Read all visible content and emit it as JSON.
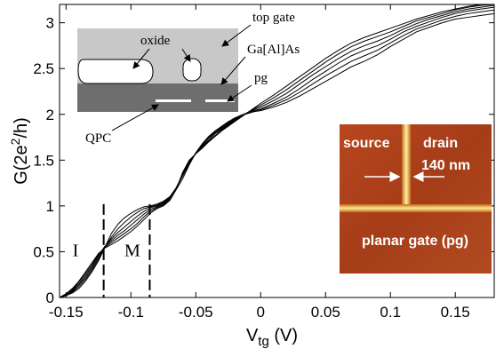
{
  "chart_data": {
    "type": "line",
    "xlabel_main": "V",
    "xlabel_sub": "tg",
    "xlabel_unit": " (V)",
    "ylabel_main": "G(2e",
    "ylabel_sup": "2",
    "ylabel_tail": "/h)",
    "xlim": [
      -0.155,
      0.18
    ],
    "ylim": [
      0,
      3.2
    ],
    "xticks": [
      -0.15,
      -0.1,
      -0.05,
      0,
      0.05,
      0.1,
      0.15
    ],
    "xtick_labels": [
      "-0.15",
      "-0.1",
      "-0.05",
      "0",
      "0.05",
      "0.1",
      "0.15"
    ],
    "yticks": [
      0,
      0.5,
      1,
      1.5,
      2,
      2.5,
      3
    ],
    "ytick_labels": [
      "0",
      "0.5",
      "1",
      "1.5",
      "2",
      "2.5",
      "3"
    ],
    "region_markers": [
      {
        "label": "I",
        "x": -0.121,
        "label_x": -0.145,
        "label_y": 0.45
      },
      {
        "label": "M",
        "x": -0.0855,
        "label_x": -0.105,
        "label_y": 0.45
      }
    ],
    "series": [
      {
        "x": [
          -0.155,
          -0.15,
          -0.145,
          -0.14,
          -0.135,
          -0.13,
          -0.125,
          -0.12,
          -0.115,
          -0.11,
          -0.105,
          -0.1,
          -0.095,
          -0.09,
          -0.085,
          -0.08,
          -0.075,
          -0.07,
          -0.065,
          -0.06,
          -0.055,
          -0.05,
          -0.045,
          -0.04,
          -0.035,
          -0.03,
          -0.025,
          -0.02,
          -0.015,
          -0.01,
          -0.005,
          0,
          0.01,
          0.02,
          0.03,
          0.04,
          0.05,
          0.06,
          0.07,
          0.08,
          0.09,
          0.1,
          0.11,
          0.12,
          0.13,
          0.14,
          0.15,
          0.16,
          0.17,
          0.18
        ],
        "y": [
          0,
          0.02,
          0.05,
          0.1,
          0.18,
          0.28,
          0.4,
          0.55,
          0.7,
          0.8,
          0.87,
          0.92,
          0.96,
          0.99,
          1.0,
          1.02,
          1.05,
          1.1,
          1.18,
          1.3,
          1.45,
          1.58,
          1.68,
          1.76,
          1.82,
          1.87,
          1.92,
          1.96,
          1.99,
          2.01,
          2.03,
          2.04,
          2.08,
          2.13,
          2.2,
          2.28,
          2.36,
          2.44,
          2.52,
          2.58,
          2.65,
          2.74,
          2.82,
          2.9,
          2.95,
          3.0,
          3.04,
          3.06,
          3.08,
          3.1
        ]
      },
      {
        "x": [
          -0.155,
          -0.15,
          -0.145,
          -0.14,
          -0.135,
          -0.13,
          -0.125,
          -0.12,
          -0.115,
          -0.11,
          -0.105,
          -0.1,
          -0.095,
          -0.09,
          -0.085,
          -0.08,
          -0.075,
          -0.07,
          -0.065,
          -0.06,
          -0.055,
          -0.05,
          -0.045,
          -0.04,
          -0.035,
          -0.03,
          -0.025,
          -0.02,
          -0.015,
          -0.01,
          -0.005,
          0,
          0.01,
          0.02,
          0.03,
          0.04,
          0.05,
          0.06,
          0.07,
          0.08,
          0.09,
          0.1,
          0.11,
          0.12,
          0.13,
          0.14,
          0.15,
          0.16,
          0.17,
          0.18
        ],
        "y": [
          0,
          0.02,
          0.06,
          0.12,
          0.2,
          0.3,
          0.42,
          0.55,
          0.66,
          0.75,
          0.82,
          0.88,
          0.93,
          0.97,
          0.99,
          1.01,
          1.04,
          1.1,
          1.2,
          1.33,
          1.46,
          1.58,
          1.67,
          1.75,
          1.81,
          1.86,
          1.91,
          1.95,
          1.99,
          2.01,
          2.03,
          2.05,
          2.1,
          2.16,
          2.24,
          2.33,
          2.42,
          2.5,
          2.58,
          2.64,
          2.7,
          2.78,
          2.86,
          2.93,
          2.98,
          3.03,
          3.07,
          3.1,
          3.12,
          3.14
        ]
      },
      {
        "x": [
          -0.155,
          -0.15,
          -0.145,
          -0.14,
          -0.135,
          -0.13,
          -0.125,
          -0.12,
          -0.115,
          -0.11,
          -0.105,
          -0.1,
          -0.095,
          -0.09,
          -0.085,
          -0.08,
          -0.075,
          -0.07,
          -0.065,
          -0.06,
          -0.055,
          -0.05,
          -0.045,
          -0.04,
          -0.035,
          -0.03,
          -0.025,
          -0.02,
          -0.015,
          -0.01,
          -0.005,
          0,
          0.01,
          0.02,
          0.03,
          0.04,
          0.05,
          0.06,
          0.07,
          0.08,
          0.09,
          0.1,
          0.11,
          0.12,
          0.13,
          0.14,
          0.15,
          0.16,
          0.17,
          0.18
        ],
        "y": [
          0,
          0.03,
          0.07,
          0.14,
          0.22,
          0.32,
          0.44,
          0.56,
          0.64,
          0.71,
          0.77,
          0.83,
          0.89,
          0.94,
          0.98,
          1.0,
          1.03,
          1.09,
          1.2,
          1.34,
          1.47,
          1.57,
          1.66,
          1.74,
          1.8,
          1.85,
          1.9,
          1.95,
          1.99,
          2.02,
          2.04,
          2.06,
          2.12,
          2.19,
          2.28,
          2.38,
          2.47,
          2.56,
          2.64,
          2.7,
          2.75,
          2.82,
          2.9,
          2.96,
          3.01,
          3.06,
          3.1,
          3.13,
          3.15,
          3.17
        ]
      },
      {
        "x": [
          -0.155,
          -0.15,
          -0.145,
          -0.14,
          -0.135,
          -0.13,
          -0.125,
          -0.12,
          -0.115,
          -0.11,
          -0.105,
          -0.1,
          -0.095,
          -0.09,
          -0.085,
          -0.08,
          -0.075,
          -0.07,
          -0.065,
          -0.06,
          -0.055,
          -0.05,
          -0.045,
          -0.04,
          -0.035,
          -0.03,
          -0.025,
          -0.02,
          -0.015,
          -0.01,
          -0.005,
          0,
          0.01,
          0.02,
          0.03,
          0.04,
          0.05,
          0.06,
          0.07,
          0.08,
          0.09,
          0.1,
          0.11,
          0.12,
          0.13,
          0.14,
          0.15,
          0.16,
          0.17,
          0.18
        ],
        "y": [
          0,
          0.03,
          0.08,
          0.15,
          0.24,
          0.34,
          0.46,
          0.56,
          0.62,
          0.68,
          0.73,
          0.79,
          0.85,
          0.91,
          0.96,
          0.99,
          1.02,
          1.08,
          1.2,
          1.35,
          1.48,
          1.57,
          1.65,
          1.72,
          1.79,
          1.84,
          1.89,
          1.94,
          1.98,
          2.02,
          2.05,
          2.08,
          2.15,
          2.23,
          2.33,
          2.43,
          2.52,
          2.61,
          2.69,
          2.75,
          2.8,
          2.86,
          2.93,
          2.99,
          3.04,
          3.08,
          3.12,
          3.15,
          3.17,
          3.19
        ]
      },
      {
        "x": [
          -0.155,
          -0.15,
          -0.145,
          -0.14,
          -0.135,
          -0.13,
          -0.125,
          -0.12,
          -0.115,
          -0.11,
          -0.105,
          -0.1,
          -0.095,
          -0.09,
          -0.085,
          -0.08,
          -0.075,
          -0.07,
          -0.065,
          -0.06,
          -0.055,
          -0.05,
          -0.045,
          -0.04,
          -0.035,
          -0.03,
          -0.025,
          -0.02,
          -0.015,
          -0.01,
          -0.005,
          0,
          0.01,
          0.02,
          0.03,
          0.04,
          0.05,
          0.06,
          0.07,
          0.08,
          0.09,
          0.1,
          0.11,
          0.12,
          0.13,
          0.14,
          0.15,
          0.16,
          0.17,
          0.18
        ],
        "y": [
          0,
          0.04,
          0.09,
          0.17,
          0.26,
          0.36,
          0.47,
          0.55,
          0.6,
          0.65,
          0.7,
          0.75,
          0.81,
          0.88,
          0.94,
          0.98,
          1.01,
          1.07,
          1.19,
          1.36,
          1.49,
          1.57,
          1.64,
          1.71,
          1.77,
          1.83,
          1.88,
          1.93,
          1.98,
          2.02,
          2.06,
          2.1,
          2.18,
          2.27,
          2.37,
          2.47,
          2.57,
          2.66,
          2.74,
          2.8,
          2.85,
          2.9,
          2.96,
          3.02,
          3.06,
          3.1,
          3.14,
          3.17,
          3.19,
          3.2
        ]
      },
      {
        "x": [
          -0.155,
          -0.15,
          -0.145,
          -0.14,
          -0.135,
          -0.13,
          -0.125,
          -0.12,
          -0.115,
          -0.11,
          -0.105,
          -0.1,
          -0.095,
          -0.09,
          -0.085,
          -0.08,
          -0.075,
          -0.07,
          -0.065,
          -0.06,
          -0.055,
          -0.05,
          -0.045,
          -0.04,
          -0.035,
          -0.03,
          -0.025,
          -0.02,
          -0.015,
          -0.01,
          -0.005,
          0,
          0.01,
          0.02,
          0.03,
          0.04,
          0.05,
          0.06,
          0.07,
          0.08,
          0.09,
          0.1,
          0.11,
          0.12,
          0.13,
          0.14,
          0.15,
          0.16,
          0.17,
          0.18
        ],
        "y": [
          0,
          0.04,
          0.1,
          0.18,
          0.28,
          0.38,
          0.48,
          0.54,
          0.58,
          0.62,
          0.67,
          0.72,
          0.78,
          0.85,
          0.92,
          0.97,
          1.0,
          1.06,
          1.18,
          1.37,
          1.5,
          1.57,
          1.63,
          1.7,
          1.76,
          1.82,
          1.87,
          1.92,
          1.97,
          2.02,
          2.07,
          2.12,
          2.21,
          2.31,
          2.41,
          2.51,
          2.61,
          2.7,
          2.78,
          2.84,
          2.89,
          2.94,
          2.99,
          3.04,
          3.08,
          3.12,
          3.15,
          3.18,
          3.2,
          3.2
        ]
      }
    ]
  },
  "schematic": {
    "labels": {
      "top_gate": "top gate",
      "oxide": "oxide",
      "gaalas": "Ga[Al]As",
      "pg": "pg",
      "qpc": "QPC"
    }
  },
  "afm": {
    "labels": {
      "source": "source",
      "drain": "drain",
      "width": "140 nm",
      "planar_gate": "planar gate (pg)"
    }
  }
}
